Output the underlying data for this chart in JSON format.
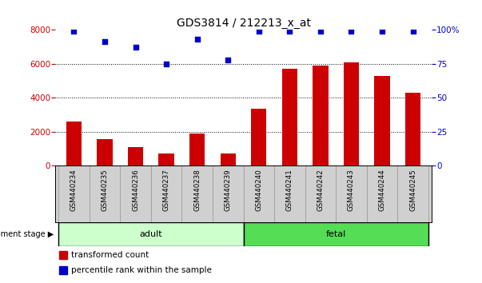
{
  "title": "GDS3814 / 212213_x_at",
  "samples": [
    "GSM440234",
    "GSM440235",
    "GSM440236",
    "GSM440237",
    "GSM440238",
    "GSM440239",
    "GSM440240",
    "GSM440241",
    "GSM440242",
    "GSM440243",
    "GSM440244",
    "GSM440245"
  ],
  "transformed_count": [
    2600,
    1550,
    1100,
    700,
    1900,
    700,
    3350,
    5700,
    5900,
    6100,
    5300,
    4300
  ],
  "percentile_rank": [
    99,
    91,
    87,
    75,
    93,
    78,
    99,
    99,
    99,
    99,
    99,
    99
  ],
  "bar_color": "#cc0000",
  "dot_color": "#0000cc",
  "left_axis_color": "#cc0000",
  "right_axis_color": "#0000cc",
  "ylim_left": [
    0,
    8000
  ],
  "ylim_right": [
    0,
    100
  ],
  "yticks_left": [
    0,
    2000,
    4000,
    6000,
    8000
  ],
  "yticks_right": [
    0,
    25,
    50,
    75,
    100
  ],
  "groups": [
    {
      "label": "adult",
      "start": 0,
      "end": 5,
      "color": "#ccffcc"
    },
    {
      "label": "fetal",
      "start": 6,
      "end": 11,
      "color": "#55dd55"
    }
  ],
  "group_row_label": "development stage",
  "legend_items": [
    {
      "color": "#cc0000",
      "label": "transformed count"
    },
    {
      "color": "#0000cc",
      "label": "percentile rank within the sample"
    }
  ],
  "bar_width": 0.5,
  "bg_plot": "#ffffff",
  "tick_area_color": "#d0d0d0"
}
